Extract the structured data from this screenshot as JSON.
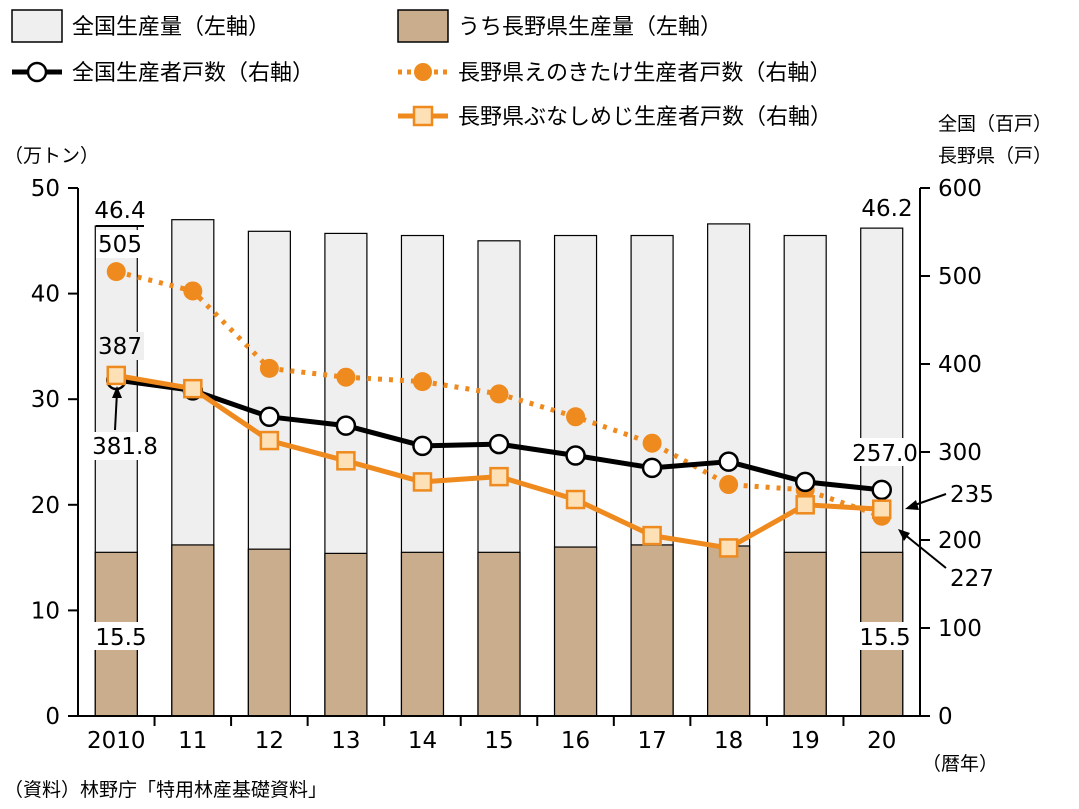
{
  "chart_data": {
    "type": "bar",
    "categories": [
      "2010",
      "11",
      "12",
      "13",
      "14",
      "15",
      "16",
      "17",
      "18",
      "19",
      "20"
    ],
    "xlabel": "（暦年）",
    "left_axis": {
      "unit": "（万トン）",
      "ylim": [
        0,
        50
      ],
      "ticks": [
        "0",
        "10",
        "20",
        "30",
        "40",
        "50"
      ]
    },
    "right_axis": {
      "unit_line1": "全国（百戸）",
      "unit_line2": "長野県（戸）",
      "ylim": [
        0,
        600
      ],
      "ticks": [
        "0",
        "100",
        "200",
        "300",
        "400",
        "500",
        "600"
      ]
    },
    "series": [
      {
        "name": "全国生産量（左軸）",
        "type": "bar",
        "axis": "left",
        "color": "#efefef",
        "values": [
          46.4,
          47.0,
          45.9,
          45.7,
          45.5,
          45.0,
          45.5,
          45.5,
          46.6,
          45.5,
          46.2
        ]
      },
      {
        "name": "うち長野県生産量（左軸）",
        "type": "bar",
        "axis": "left",
        "color": "#c9ad8c",
        "values": [
          15.5,
          16.2,
          15.8,
          15.4,
          15.5,
          15.5,
          16.0,
          16.2,
          16.1,
          15.5,
          15.5
        ]
      },
      {
        "name": "全国生産者戸数（右軸）",
        "type": "line",
        "axis": "right",
        "color": "#000000",
        "marker": "open-circle",
        "dash": "solid",
        "values": [
          381.8,
          370,
          340,
          330,
          307,
          309,
          296,
          282,
          289,
          266,
          257.0
        ]
      },
      {
        "name": "長野県えのきたけ生産者戸数（右軸）",
        "type": "line",
        "axis": "right",
        "color": "#ee8a1e",
        "marker": "filled-circle",
        "dash": "dotted",
        "values": [
          505,
          483,
          395,
          385,
          380,
          366,
          340,
          310,
          263,
          257,
          227
        ]
      },
      {
        "name": "長野県ぶなしめじ生産者戸数（右軸）",
        "type": "line",
        "axis": "right",
        "color": "#ee8a1e",
        "marker": "open-square",
        "dash": "solid",
        "values": [
          387,
          372,
          313,
          290,
          266,
          272,
          246,
          205,
          191,
          240,
          235
        ]
      }
    ],
    "annotations": [
      {
        "text": "46.4"
      },
      {
        "text": "505"
      },
      {
        "text": "387"
      },
      {
        "text": "381.8"
      },
      {
        "text": "15.5"
      },
      {
        "text": "46.2"
      },
      {
        "text": "257.0"
      },
      {
        "text": "235"
      },
      {
        "text": "227"
      },
      {
        "text": "15.5"
      }
    ],
    "source": "（資料）林野庁「特用林産基礎資料」",
    "grid": false,
    "legend": "top"
  }
}
